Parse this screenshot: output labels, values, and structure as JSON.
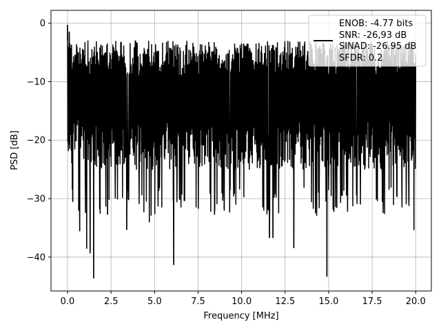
{
  "chart_data": {
    "type": "line",
    "title": "",
    "xlabel": "Frequency [MHz]",
    "ylabel": "PSD [dB]",
    "xlim": [
      -0.95,
      20.9
    ],
    "ylim": [
      -45.8,
      2.2
    ],
    "xticks": [
      0.0,
      2.5,
      5.0,
      7.5,
      10.0,
      12.5,
      15.0,
      17.5,
      20.0
    ],
    "xtick_labels": [
      "0.0",
      "2.5",
      "5.0",
      "7.5",
      "10.0",
      "12.5",
      "15.0",
      "17.5",
      "20.0"
    ],
    "yticks": [
      0,
      -10,
      -20,
      -30,
      -40
    ],
    "ytick_labels": [
      "0",
      "−10",
      "−20",
      "−30",
      "−40"
    ],
    "grid": true,
    "legend_position": "top-right",
    "legend_lines": [
      "ENOB: -4.77 bits",
      "SNR: -26,93 dB",
      "SINAD: -26.95 dB",
      "SFDR: 0.2"
    ],
    "series": [
      {
        "color": "#000000",
        "description": "dense noise PSD trace",
        "x_range": [
          0,
          20.0
        ],
        "upper_envelope_approx": -3,
        "lower_envelope_approx": -25,
        "peaks": [
          {
            "x": 0.0,
            "y": -0.3
          },
          {
            "x": 0.1,
            "y": -1.5
          }
        ],
        "deep_dips": [
          {
            "x": 0.3,
            "y": -30.5
          },
          {
            "x": 0.7,
            "y": -35.5
          },
          {
            "x": 1.1,
            "y": -38.5
          },
          {
            "x": 1.3,
            "y": -39.3
          },
          {
            "x": 1.5,
            "y": -43.6
          },
          {
            "x": 2.3,
            "y": -32.7
          },
          {
            "x": 3.4,
            "y": -35.3
          },
          {
            "x": 4.7,
            "y": -34.0
          },
          {
            "x": 6.1,
            "y": -41.3
          },
          {
            "x": 9.0,
            "y": -32.0
          },
          {
            "x": 11.6,
            "y": -36.7
          },
          {
            "x": 11.8,
            "y": -36.7
          },
          {
            "x": 13.0,
            "y": -38.4
          },
          {
            "x": 14.9,
            "y": -43.3
          },
          {
            "x": 15.3,
            "y": -32.2
          },
          {
            "x": 19.9,
            "y": -35.3
          }
        ]
      }
    ]
  }
}
